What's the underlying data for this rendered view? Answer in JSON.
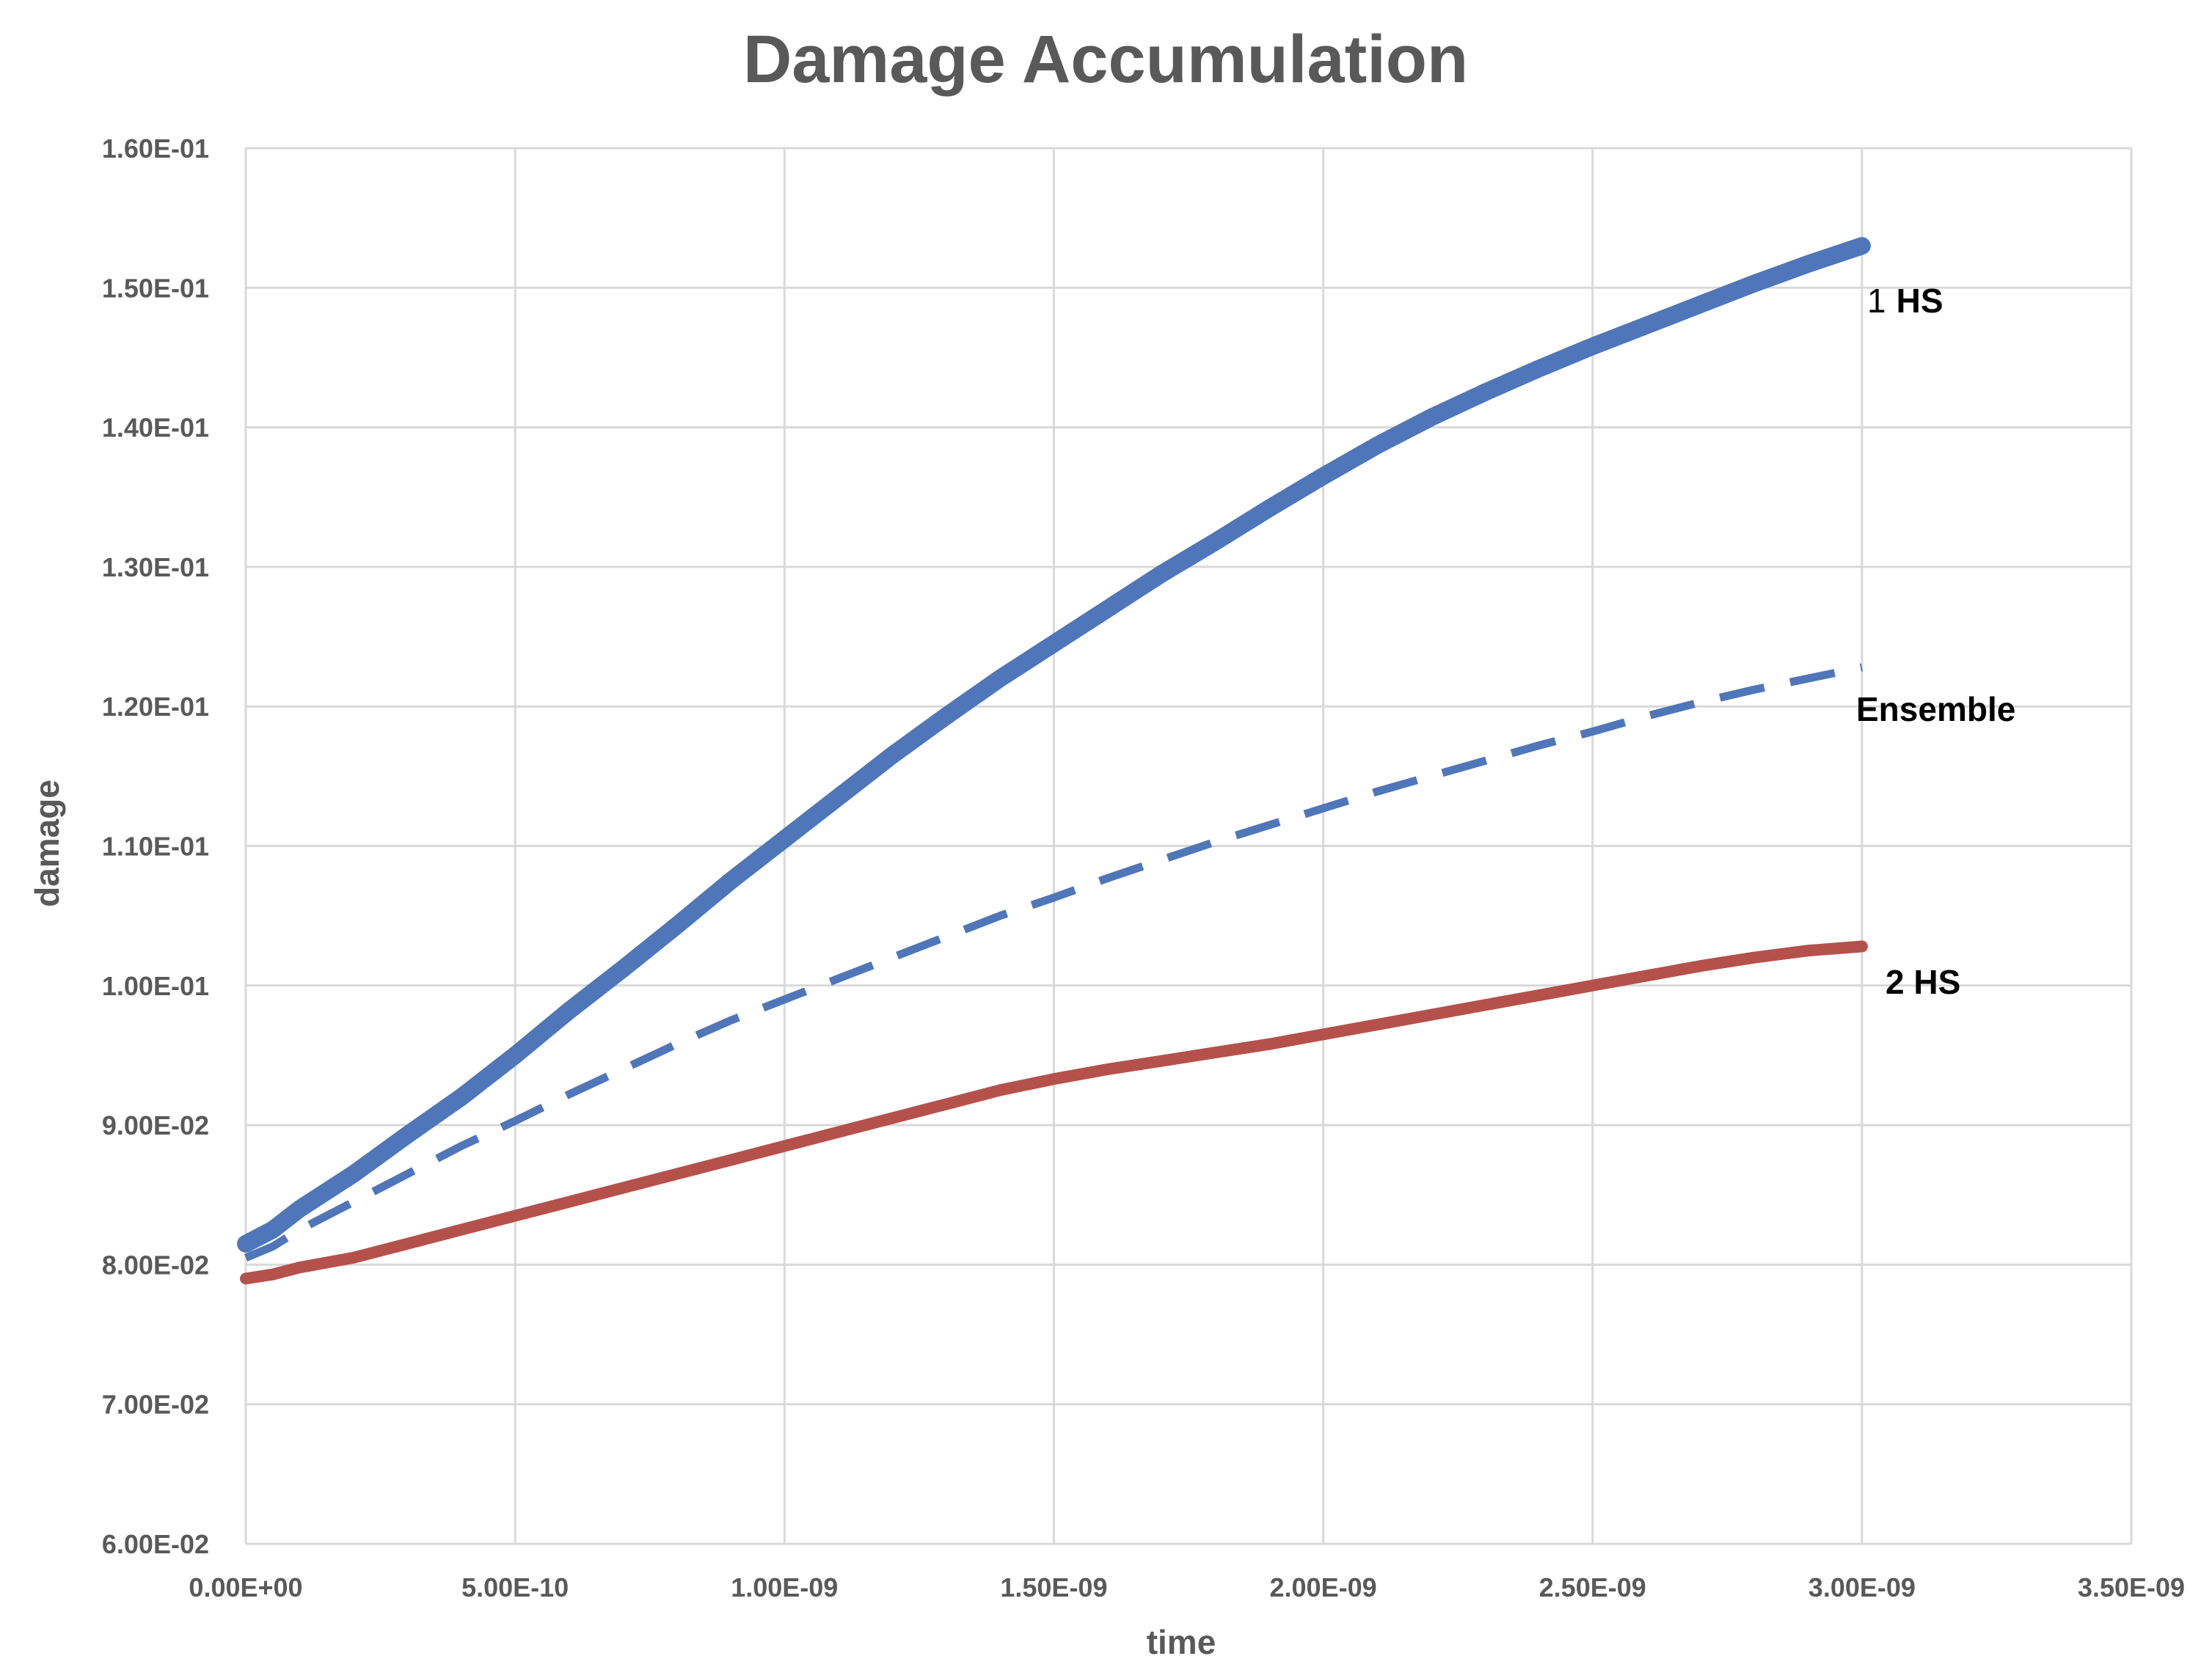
{
  "chart_data": {
    "type": "line",
    "title": "Damage Accumulation",
    "xlabel": "time",
    "ylabel": "damage",
    "xlim": [
      0,
      3.5e-09
    ],
    "ylim": [
      0.06,
      0.16
    ],
    "x_ticks": [
      "0.00E+00",
      "5.00E-10",
      "1.00E-09",
      "1.50E-09",
      "2.00E-09",
      "2.50E-09",
      "3.00E-09",
      "3.50E-09"
    ],
    "y_ticks": [
      "6.00E-02",
      "7.00E-02",
      "8.00E-02",
      "9.00E-02",
      "1.00E-01",
      "1.10E-01",
      "1.20E-01",
      "1.30E-01",
      "1.40E-01",
      "1.50E-01",
      "1.60E-01"
    ],
    "grid": true,
    "legend": "none",
    "series": [
      {
        "label_parts": [
          "1",
          "HS"
        ],
        "color": "#4f76b9",
        "style": "solid",
        "x": [
          0,
          5e-11,
          1e-10,
          2e-10,
          3e-10,
          4e-10,
          5e-10,
          6e-10,
          7e-10,
          8e-10,
          9e-10,
          1e-09,
          1.1e-09,
          1.2e-09,
          1.3e-09,
          1.4e-09,
          1.5e-09,
          1.6e-09,
          1.7e-09,
          1.8e-09,
          1.9e-09,
          2e-09,
          2.1e-09,
          2.2e-09,
          2.3e-09,
          2.4e-09,
          2.5e-09,
          2.6e-09,
          2.7e-09,
          2.8e-09,
          2.9e-09,
          3e-09
        ],
        "y": [
          0.0815,
          0.0825,
          0.084,
          0.0865,
          0.0893,
          0.092,
          0.095,
          0.0982,
          0.1012,
          0.1043,
          0.1075,
          0.1105,
          0.1135,
          0.1165,
          0.1193,
          0.122,
          0.1245,
          0.127,
          0.1295,
          0.1318,
          0.1342,
          0.1365,
          0.1387,
          0.1407,
          0.1425,
          0.1442,
          0.1458,
          0.1473,
          0.1488,
          0.1503,
          0.1517,
          0.153
        ]
      },
      {
        "label": "Ensemble",
        "color": "#4f76b9",
        "style": "dashed",
        "x": [
          0,
          5e-11,
          1e-10,
          2e-10,
          3e-10,
          4e-10,
          5e-10,
          6e-10,
          7e-10,
          8e-10,
          9e-10,
          1e-09,
          1.1e-09,
          1.2e-09,
          1.3e-09,
          1.4e-09,
          1.5e-09,
          1.6e-09,
          1.7e-09,
          1.8e-09,
          1.9e-09,
          2e-09,
          2.1e-09,
          2.2e-09,
          2.3e-09,
          2.4e-09,
          2.5e-09,
          2.6e-09,
          2.7e-09,
          2.8e-09,
          2.9e-09,
          3e-09
        ],
        "y": [
          0.0805,
          0.0813,
          0.0825,
          0.0845,
          0.0865,
          0.0885,
          0.0903,
          0.0922,
          0.094,
          0.0958,
          0.0975,
          0.099,
          0.1005,
          0.102,
          0.1035,
          0.105,
          0.1063,
          0.1077,
          0.109,
          0.1103,
          0.1115,
          0.1127,
          0.1139,
          0.115,
          0.1161,
          0.1172,
          0.1182,
          0.1193,
          0.1203,
          0.1212,
          0.122,
          0.1228
        ]
      },
      {
        "label": "2 HS",
        "color": "#b5514b",
        "style": "solid",
        "x": [
          0,
          5e-11,
          1e-10,
          2e-10,
          3e-10,
          4e-10,
          5e-10,
          6e-10,
          7e-10,
          8e-10,
          9e-10,
          1e-09,
          1.1e-09,
          1.2e-09,
          1.3e-09,
          1.4e-09,
          1.5e-09,
          1.6e-09,
          1.7e-09,
          1.8e-09,
          1.9e-09,
          2e-09,
          2.1e-09,
          2.2e-09,
          2.3e-09,
          2.4e-09,
          2.5e-09,
          2.6e-09,
          2.7e-09,
          2.8e-09,
          2.9e-09,
          3e-09
        ],
        "y": [
          0.079,
          0.0793,
          0.0798,
          0.0805,
          0.0815,
          0.0825,
          0.0835,
          0.0845,
          0.0855,
          0.0865,
          0.0875,
          0.0885,
          0.0895,
          0.0905,
          0.0915,
          0.0925,
          0.0933,
          0.094,
          0.0946,
          0.0952,
          0.0958,
          0.0965,
          0.0972,
          0.0979,
          0.0986,
          0.0993,
          0.1,
          0.1007,
          0.1014,
          0.102,
          0.1025,
          0.1028
        ]
      }
    ]
  }
}
